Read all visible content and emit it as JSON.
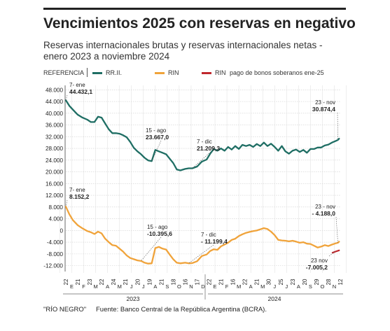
{
  "header": {
    "title": "Vencimientos 2025 con reservas en negativo",
    "subtitle": "Reservas internacionales brutas y reservas internacionales netas - enero 2023 a noviembre 2024"
  },
  "legend": {
    "heading": "REFERENCIA",
    "items": [
      {
        "label": "RR.II.",
        "color": "#1f6e64"
      },
      {
        "label": "RIN",
        "color": "#f0a33a"
      },
      {
        "label": "RIN",
        "note": "pago de bonos soberanos ene-25",
        "color": "#c0282d"
      }
    ]
  },
  "footer": {
    "credit": "\"RÍO NEGRO\"",
    "source": "Fuente: Banco Central de la República Argentina (BCRA)."
  },
  "chart_data": {
    "type": "line",
    "y_tick_labels": [
      "48.000",
      "44.000",
      "40.000",
      "36.000",
      "32.000",
      "28.000",
      "24.000",
      "20.000",
      "16.000",
      "12.000",
      "8.000",
      "4.000",
      "0",
      "-4.000",
      "-8.000",
      "-12.000"
    ],
    "ylim": [
      -14000,
      49500
    ],
    "x_day_labels": [
      "22",
      "21",
      "23",
      "22",
      "24",
      "21",
      "20",
      "19",
      "21",
      "18",
      "16",
      "17",
      "22",
      "21",
      "16",
      "22",
      "21",
      "30",
      "25",
      "23",
      "20",
      "29",
      "28",
      "12"
    ],
    "x_month_labels": [
      "E",
      "F",
      "M",
      "A",
      "M",
      "J",
      "J",
      "A",
      "S",
      "O",
      "N",
      "D",
      "E",
      "F",
      "M",
      "A",
      "M",
      "J",
      "J",
      "A",
      "S",
      "O",
      "N"
    ],
    "year_labels": [
      "2023",
      "2024"
    ],
    "series": [
      {
        "name": "RR.II.",
        "color": "#1f6e64",
        "x": [
          0,
          0.3,
          0.6,
          1.0,
          1.4,
          1.8,
          2.1,
          2.4,
          2.7,
          3.0,
          3.3,
          3.6,
          3.9,
          4.2,
          4.5,
          4.8,
          5.1,
          5.4,
          5.7,
          6.0,
          6.3,
          6.6,
          6.9,
          7.2,
          7.5,
          7.8,
          8.1,
          8.4,
          8.7,
          9.0,
          9.3,
          9.6,
          10.0,
          10.3,
          10.6,
          11.0,
          11.4,
          11.8,
          12.1,
          12.4,
          12.7,
          13.0,
          13.3,
          13.6,
          13.9,
          14.2,
          14.5,
          14.8,
          15.1,
          15.4,
          15.7,
          16.0,
          16.3,
          16.6,
          16.9,
          17.2,
          17.5,
          17.8,
          18.1,
          18.4,
          18.7,
          19.0,
          19.3,
          19.6,
          19.9,
          20.2,
          20.5,
          20.8,
          21.1,
          21.4,
          21.7,
          22.0,
          22.3,
          22.6,
          22.8,
          22.9
        ],
        "y": [
          44432,
          42500,
          41200,
          39500,
          38500,
          37800,
          37000,
          37000,
          38800,
          38500,
          36500,
          34500,
          33200,
          33200,
          33000,
          32500,
          31800,
          30200,
          28200,
          27000,
          26000,
          24800,
          23900,
          23667,
          27500,
          27000,
          26500,
          26000,
          24500,
          23000,
          20800,
          20500,
          21000,
          21200,
          21209,
          21800,
          23500,
          24200,
          26200,
          27800,
          27200,
          28000,
          27200,
          28500,
          27600,
          28800,
          27800,
          29200,
          28800,
          29200,
          28500,
          29500,
          28800,
          30000,
          28800,
          29600,
          28500,
          27200,
          28800,
          27000,
          26200,
          27200,
          27600,
          26800,
          27500,
          26500,
          27800,
          27800,
          28300,
          28300,
          29000,
          29300,
          30000,
          30500,
          30874,
          31300
        ]
      },
      {
        "name": "RIN",
        "color": "#f0a33a",
        "x": [
          0,
          0.3,
          0.6,
          1.0,
          1.4,
          1.8,
          2.1,
          2.4,
          2.7,
          3.0,
          3.3,
          3.6,
          3.9,
          4.2,
          4.5,
          4.8,
          5.1,
          5.4,
          5.7,
          6.0,
          6.3,
          6.6,
          6.9,
          7.2,
          7.5,
          7.8,
          8.1,
          8.4,
          8.7,
          9.0,
          9.3,
          9.6,
          10.0,
          10.3,
          10.6,
          11.0,
          11.4,
          11.8,
          12.1,
          12.4,
          12.7,
          13.0,
          13.3,
          13.6,
          13.9,
          14.2,
          14.5,
          14.8,
          15.1,
          15.4,
          15.7,
          16.0,
          16.3,
          16.6,
          16.9,
          17.2,
          17.5,
          17.8,
          18.1,
          18.4,
          18.7,
          19.0,
          19.3,
          19.6,
          19.9,
          20.2,
          20.5,
          20.8,
          21.1,
          21.4,
          21.7,
          22.0,
          22.3,
          22.6,
          22.8,
          22.9
        ],
        "y": [
          8152,
          5500,
          3500,
          1800,
          700,
          -200,
          -600,
          -1200,
          -400,
          -1000,
          -2800,
          -4000,
          -5000,
          -5200,
          -6200,
          -7200,
          -8500,
          -9400,
          -9800,
          -10200,
          -10396,
          -11000,
          -11300,
          -11200,
          -6000,
          -5600,
          -6200,
          -6500,
          -8200,
          -9800,
          -11000,
          -11200,
          -11000,
          -11199,
          -11100,
          -10500,
          -8700,
          -8200,
          -7000,
          -6400,
          -6600,
          -5400,
          -4800,
          -4200,
          -3200,
          -2800,
          -1900,
          -1300,
          -800,
          -500,
          -200,
          0,
          400,
          800,
          500,
          -400,
          -1600,
          -3200,
          -3400,
          -3500,
          -3700,
          -3500,
          -3800,
          -4200,
          -4000,
          -4500,
          -4600,
          -5200,
          -5800,
          -5500,
          -5000,
          -5300,
          -4800,
          -4400,
          -4188,
          -3800
        ]
      },
      {
        "name": "RIN pago de bonos soberanos ene-25",
        "color": "#c0282d",
        "x": [
          22.35,
          22.6,
          22.9
        ],
        "y": [
          -7600,
          -7200,
          -6800
        ]
      }
    ],
    "annotations": [
      {
        "date": "7- ene",
        "value": "44.432,1",
        "x": 0,
        "y": 44432
      },
      {
        "date": "15 - ago",
        "value": "23.667,0",
        "x": 7.2,
        "y": 23667
      },
      {
        "date": "7 - dic",
        "value": "21.209,3",
        "x": 10.6,
        "y": 21209
      },
      {
        "date": "23 - nov",
        "value": "30.874,4",
        "x": 22.8,
        "y": 30874
      },
      {
        "date": "7- ene",
        "value": "8.152,2",
        "x": 0,
        "y": 8152
      },
      {
        "date": "15 - ago",
        "value": "-10.395,6",
        "x": 6.3,
        "y": -10396
      },
      {
        "date": "7 - dic",
        "value": "- 11.199,4",
        "x": 10.3,
        "y": -11199
      },
      {
        "date": "23 - nov",
        "value": "- 4.188,0",
        "x": 22.8,
        "y": -4188
      },
      {
        "date": "23 nov",
        "value": "-7.005,2",
        "x": 22.6,
        "y": -7005
      }
    ]
  }
}
